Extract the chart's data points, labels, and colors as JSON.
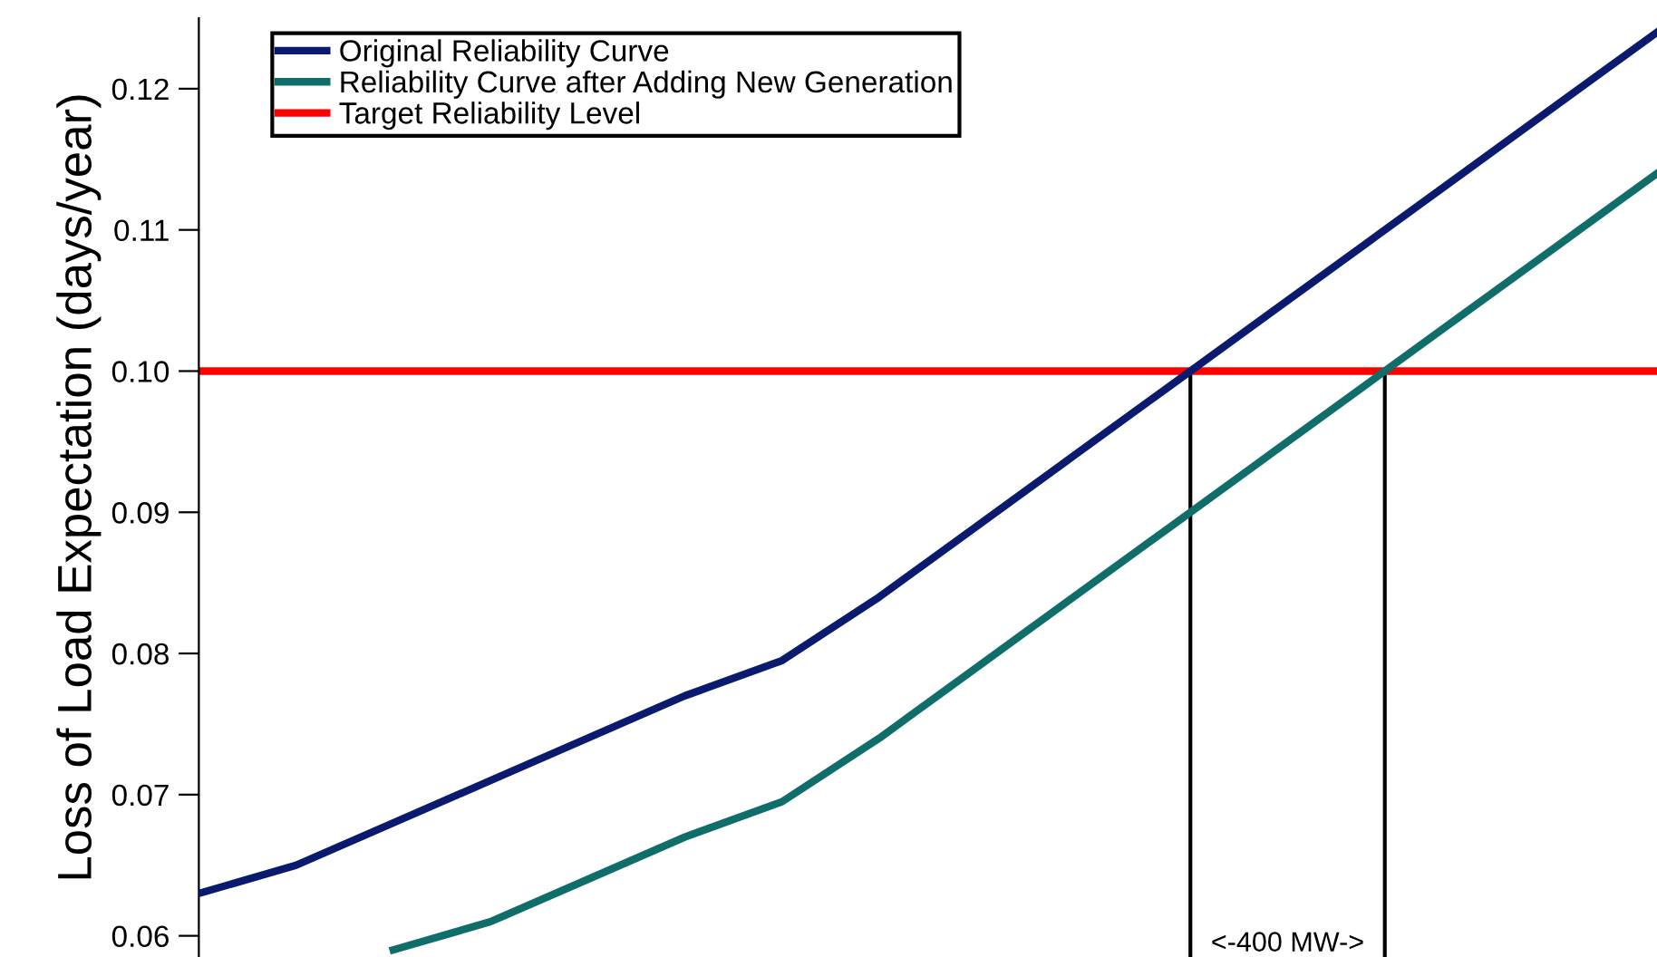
{
  "chart_data": {
    "type": "line",
    "ylabel": "Loss of Load Expectation (days/year)",
    "categories": [
      null,
      null,
      null,
      null,
      null,
      null,
      null,
      null,
      null,
      null,
      null,
      null,
      null,
      null,
      null,
      null
    ],
    "ylim": [
      0.0585,
      0.125
    ],
    "yticks": [
      {
        "value": 0.06,
        "label": "0.06"
      },
      {
        "value": 0.07,
        "label": "0.07"
      },
      {
        "value": 0.08,
        "label": "0.08"
      },
      {
        "value": 0.09,
        "label": "0.09"
      },
      {
        "value": 0.1,
        "label": "0.10"
      },
      {
        "value": 0.11,
        "label": "0.11"
      },
      {
        "value": 0.12,
        "label": "0.12"
      }
    ],
    "tick_labels": "y",
    "grid": false,
    "legend": "top left",
    "marker": "none",
    "line_style": "solid",
    "series": [
      {
        "name": "Original Reliability Curve",
        "color": "#0a1a6e",
        "values": [
          0.063,
          0.065,
          0.068,
          0.071,
          0.074,
          0.077,
          0.0795,
          0.084,
          0.089,
          0.094,
          0.099,
          0.104,
          0.109,
          0.114,
          0.119,
          0.124
        ]
      },
      {
        "name": "Reliability Curve after Adding New Generation",
        "color": "#0f6e6a",
        "values": [
          null,
          null,
          0.059,
          0.061,
          0.064,
          0.067,
          0.0695,
          0.074,
          0.079,
          0.084,
          0.089,
          0.094,
          0.099,
          0.104,
          0.109,
          0.114
        ]
      }
    ],
    "ref_lines": [
      {
        "axis": "y",
        "value": 0.1,
        "label": "Target Reliability Level",
        "color": "#ff0000"
      }
    ],
    "annotations": [
      "<-400 MW->"
    ]
  }
}
